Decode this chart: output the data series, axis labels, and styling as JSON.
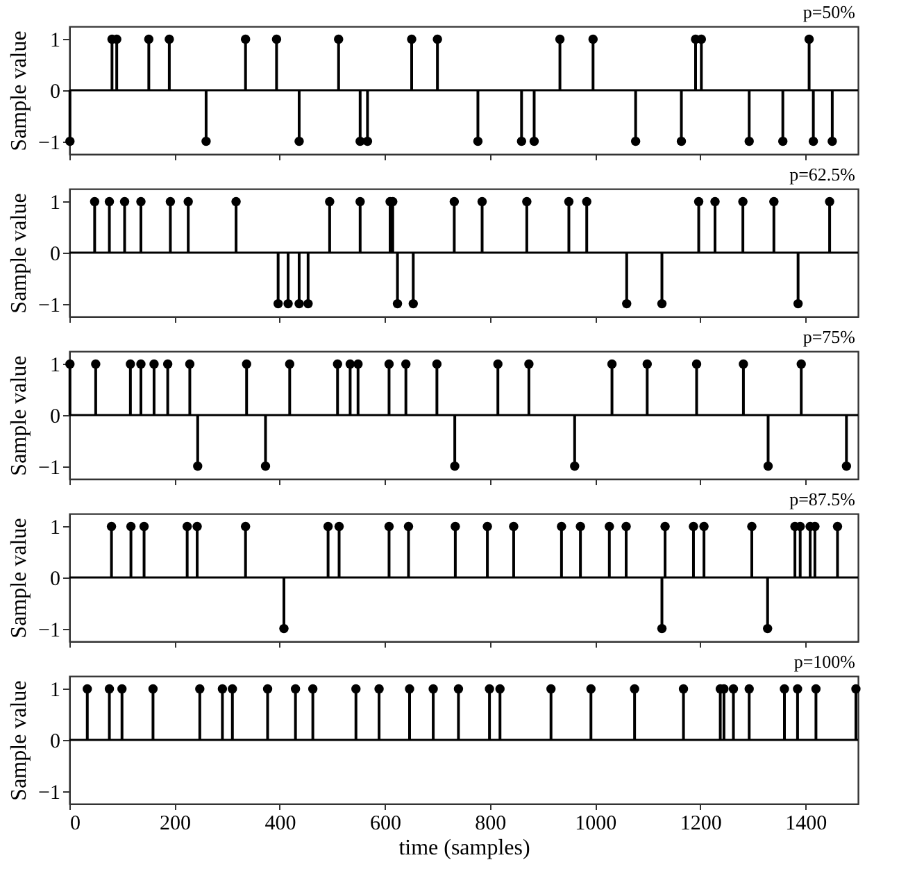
{
  "chart_data": [
    {
      "type": "lollipop",
      "ylabel": "Sample value",
      "xlim": [
        0,
        1500
      ],
      "xticks": [
        0,
        200,
        400,
        600,
        800,
        1000,
        1200,
        1400
      ],
      "ylim": [
        -1.25,
        1.25
      ],
      "yticks": [
        -1,
        0,
        1
      ],
      "tick_labels": "y",
      "marker": "circle",
      "color": "#000000",
      "annotations": [
        "p=50%"
      ],
      "x": [
        1,
        81,
        90,
        151,
        190,
        260,
        335,
        394,
        437,
        512,
        553,
        567,
        651,
        700,
        777,
        860,
        884,
        933,
        996,
        1077,
        1164,
        1191,
        1202,
        1293,
        1357,
        1407,
        1415,
        1451
      ],
      "values": [
        -1,
        1,
        1,
        1,
        1,
        -1,
        1,
        1,
        -1,
        1,
        -1,
        -1,
        1,
        1,
        -1,
        -1,
        -1,
        1,
        1,
        -1,
        -1,
        1,
        1,
        -1,
        -1,
        1,
        -1,
        -1
      ]
    },
    {
      "type": "lollipop",
      "ylabel": "Sample value",
      "xlim": [
        0,
        1500
      ],
      "xticks": [
        0,
        200,
        400,
        600,
        800,
        1000,
        1200,
        1400
      ],
      "ylim": [
        -1.25,
        1.25
      ],
      "yticks": [
        -1,
        0,
        1
      ],
      "tick_labels": "y",
      "marker": "circle",
      "color": "#000000",
      "annotations": [
        "p=62.5%"
      ],
      "x": [
        48,
        76,
        105,
        136,
        192,
        226,
        317,
        397,
        416,
        437,
        454,
        495,
        553,
        610,
        615,
        624,
        654,
        732,
        785,
        870,
        950,
        984,
        1060,
        1127,
        1197,
        1228,
        1281,
        1340,
        1386,
        1446
      ],
      "values": [
        1,
        1,
        1,
        1,
        1,
        1,
        1,
        -1,
        -1,
        -1,
        -1,
        1,
        1,
        1,
        1,
        -1,
        -1,
        1,
        1,
        1,
        1,
        1,
        -1,
        -1,
        1,
        1,
        1,
        1,
        -1,
        1
      ]
    },
    {
      "type": "lollipop",
      "ylabel": "Sample value",
      "xlim": [
        0,
        1500
      ],
      "xticks": [
        0,
        200,
        400,
        600,
        800,
        1000,
        1200,
        1400
      ],
      "ylim": [
        -1.25,
        1.25
      ],
      "yticks": [
        -1,
        0,
        1
      ],
      "tick_labels": "y",
      "marker": "circle",
      "color": "#000000",
      "annotations": [
        "p=75%"
      ],
      "x": [
        1,
        50,
        116,
        136,
        161,
        187,
        229,
        244,
        337,
        373,
        419,
        510,
        534,
        549,
        608,
        640,
        699,
        733,
        815,
        874,
        961,
        1032,
        1099,
        1193,
        1282,
        1329,
        1392,
        1478
      ],
      "values": [
        1,
        1,
        1,
        1,
        1,
        1,
        1,
        -1,
        1,
        -1,
        1,
        1,
        1,
        1,
        1,
        1,
        1,
        -1,
        1,
        1,
        -1,
        1,
        1,
        1,
        1,
        -1,
        1,
        -1
      ]
    },
    {
      "type": "lollipop",
      "ylabel": "Sample value",
      "xlim": [
        0,
        1500
      ],
      "xticks": [
        0,
        200,
        400,
        600,
        800,
        1000,
        1200,
        1400
      ],
      "ylim": [
        -1.25,
        1.25
      ],
      "yticks": [
        -1,
        0,
        1
      ],
      "tick_labels": "y",
      "marker": "circle",
      "color": "#000000",
      "annotations": [
        "p=87.5%"
      ],
      "x": [
        80,
        117,
        142,
        224,
        243,
        335,
        408,
        492,
        513,
        608,
        645,
        734,
        795,
        845,
        936,
        972,
        1027,
        1059,
        1127,
        1133,
        1187,
        1207,
        1298,
        1328,
        1380,
        1390,
        1409,
        1418,
        1461
      ],
      "values": [
        1,
        1,
        1,
        1,
        1,
        1,
        -1,
        1,
        1,
        1,
        1,
        1,
        1,
        1,
        1,
        1,
        1,
        1,
        -1,
        1,
        1,
        1,
        1,
        -1,
        1,
        1,
        1,
        1,
        1
      ]
    },
    {
      "type": "lollipop",
      "ylabel": "Sample value",
      "xlabel": "time (samples)",
      "xlim": [
        0,
        1500
      ],
      "xticks": [
        0,
        200,
        400,
        600,
        800,
        1000,
        1200,
        1400
      ],
      "ylim": [
        -1.25,
        1.25
      ],
      "yticks": [
        -1,
        0,
        1
      ],
      "marker": "circle",
      "color": "#000000",
      "annotations": [
        "p=100%"
      ],
      "x": [
        34,
        76,
        100,
        159,
        248,
        291,
        310,
        377,
        430,
        463,
        545,
        589,
        647,
        692,
        740,
        799,
        819,
        916,
        992,
        1075,
        1168,
        1238,
        1245,
        1263,
        1293,
        1360,
        1385,
        1420,
        1496
      ],
      "values": [
        1,
        1,
        1,
        1,
        1,
        1,
        1,
        1,
        1,
        1,
        1,
        1,
        1,
        1,
        1,
        1,
        1,
        1,
        1,
        1,
        1,
        1,
        1,
        1,
        1,
        1,
        1,
        1,
        1
      ]
    }
  ]
}
